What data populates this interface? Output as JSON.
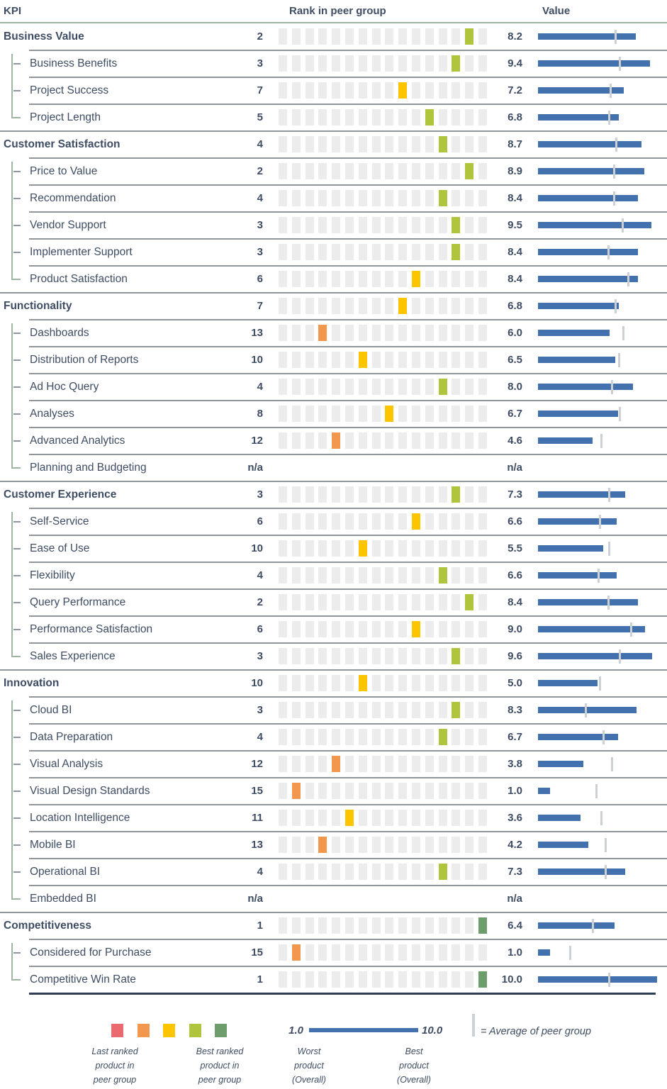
{
  "header": {
    "kpi": "KPI",
    "rank": "Rank in peer group",
    "value": "Value"
  },
  "colors": {
    "text": "#3e4d63",
    "bar_blue": "#4271ad",
    "average_tick": "#ccd1d6",
    "square_gray": "#ececec",
    "rule_green": "#9db5a2",
    "separator_gray": "#8f969c",
    "bottom_rule": "#2e3d50",
    "highlight": {
      "red": "#ea6a70",
      "orange": "#f2984e",
      "yellow": "#fdc500",
      "yellowgreen": "#b0c43c",
      "green": "#6d9d6b"
    }
  },
  "legend": {
    "swatches": [
      "red",
      "orange",
      "yellow",
      "yellowgreen",
      "green"
    ],
    "last_ranked": "Last ranked\nproduct in\npeer group",
    "best_ranked": "Best ranked\nproduct in\npeer group",
    "scale_min": "1.0",
    "scale_max": "10.0",
    "worst_product": "Worst\nproduct\n(Overall)",
    "best_product": "Best\nproduct\n(Overall)",
    "average": "= Average of peer group"
  },
  "chart_data": {
    "type": "table",
    "columns": [
      "KPI",
      "Rank in peer group",
      "Value"
    ],
    "scale": {
      "min": 1.0,
      "max": 10.0
    },
    "peer_group_size": 16,
    "rows": [
      {
        "label": "Business Value",
        "level": "parent",
        "rank": "2",
        "value": "8.2",
        "value_num": 8.2,
        "peer_avg": 6.5,
        "highlight": "yellowgreen"
      },
      {
        "label": "Business Benefits",
        "level": "child",
        "rank": "3",
        "value": "9.4",
        "value_num": 9.4,
        "peer_avg": 6.9,
        "highlight": "yellowgreen"
      },
      {
        "label": "Project Success",
        "level": "child",
        "rank": "7",
        "value": "7.2",
        "value_num": 7.2,
        "peer_avg": 6.1,
        "highlight": "yellow"
      },
      {
        "label": "Project Length",
        "level": "child",
        "rank": "5",
        "value": "6.8",
        "value_num": 6.8,
        "peer_avg": 6.0,
        "highlight": "yellowgreen"
      },
      {
        "label": "Customer Satisfaction",
        "level": "parent",
        "rank": "4",
        "value": "8.7",
        "value_num": 8.7,
        "peer_avg": 6.6,
        "highlight": "yellowgreen"
      },
      {
        "label": "Price to Value",
        "level": "child",
        "rank": "2",
        "value": "8.9",
        "value_num": 8.9,
        "peer_avg": 6.4,
        "highlight": "yellowgreen"
      },
      {
        "label": "Recommendation",
        "level": "child",
        "rank": "4",
        "value": "8.4",
        "value_num": 8.4,
        "peer_avg": 6.4,
        "highlight": "yellowgreen"
      },
      {
        "label": "Vendor Support",
        "level": "child",
        "rank": "3",
        "value": "9.5",
        "value_num": 9.5,
        "peer_avg": 7.1,
        "highlight": "yellowgreen"
      },
      {
        "label": "Implementer Support",
        "level": "child",
        "rank": "3",
        "value": "8.4",
        "value_num": 8.4,
        "peer_avg": 5.9,
        "highlight": "yellowgreen"
      },
      {
        "label": "Product Satisfaction",
        "level": "child",
        "rank": "6",
        "value": "8.4",
        "value_num": 8.4,
        "peer_avg": 7.6,
        "highlight": "yellow"
      },
      {
        "label": "Functionality",
        "level": "parent",
        "rank": "7",
        "value": "6.8",
        "value_num": 6.8,
        "peer_avg": 6.5,
        "highlight": "yellow"
      },
      {
        "label": "Dashboards",
        "level": "child",
        "rank": "13",
        "value": "6.0",
        "value_num": 6.0,
        "peer_avg": 7.2,
        "highlight": "orange"
      },
      {
        "label": "Distribution of Reports",
        "level": "child",
        "rank": "10",
        "value": "6.5",
        "value_num": 6.5,
        "peer_avg": 6.8,
        "highlight": "yellow"
      },
      {
        "label": "Ad Hoc Query",
        "level": "child",
        "rank": "4",
        "value": "8.0",
        "value_num": 8.0,
        "peer_avg": 6.2,
        "highlight": "yellowgreen"
      },
      {
        "label": "Analyses",
        "level": "child",
        "rank": "8",
        "value": "6.7",
        "value_num": 6.7,
        "peer_avg": 6.9,
        "highlight": "yellow"
      },
      {
        "label": "Advanced Analytics",
        "level": "child",
        "rank": "12",
        "value": "4.6",
        "value_num": 4.6,
        "peer_avg": 5.3,
        "highlight": "orange"
      },
      {
        "label": "Planning and Budgeting",
        "level": "child",
        "rank": "n/a",
        "value": "n/a",
        "value_num": null,
        "peer_avg": null,
        "highlight": null
      },
      {
        "label": "Customer Experience",
        "level": "parent",
        "rank": "3",
        "value": "7.3",
        "value_num": 7.3,
        "peer_avg": 6.0,
        "highlight": "yellowgreen"
      },
      {
        "label": "Self-Service",
        "level": "child",
        "rank": "6",
        "value": "6.6",
        "value_num": 6.6,
        "peer_avg": 5.2,
        "highlight": "yellow"
      },
      {
        "label": "Ease of Use",
        "level": "child",
        "rank": "10",
        "value": "5.5",
        "value_num": 5.5,
        "peer_avg": 6.0,
        "highlight": "yellow"
      },
      {
        "label": "Flexibility",
        "level": "child",
        "rank": "4",
        "value": "6.6",
        "value_num": 6.6,
        "peer_avg": 5.1,
        "highlight": "yellowgreen"
      },
      {
        "label": "Query Performance",
        "level": "child",
        "rank": "2",
        "value": "8.4",
        "value_num": 8.4,
        "peer_avg": 5.9,
        "highlight": "yellowgreen"
      },
      {
        "label": "Performance Satisfaction",
        "level": "child",
        "rank": "6",
        "value": "9.0",
        "value_num": 9.0,
        "peer_avg": 7.8,
        "highlight": "yellow"
      },
      {
        "label": "Sales Experience",
        "level": "child",
        "rank": "3",
        "value": "9.6",
        "value_num": 9.6,
        "peer_avg": 6.9,
        "highlight": "yellowgreen"
      },
      {
        "label": "Innovation",
        "level": "parent",
        "rank": "10",
        "value": "5.0",
        "value_num": 5.0,
        "peer_avg": 5.2,
        "highlight": "yellow"
      },
      {
        "label": "Cloud BI",
        "level": "child",
        "rank": "3",
        "value": "8.3",
        "value_num": 8.3,
        "peer_avg": 4.0,
        "highlight": "yellowgreen"
      },
      {
        "label": "Data Preparation",
        "level": "child",
        "rank": "4",
        "value": "6.7",
        "value_num": 6.7,
        "peer_avg": 5.5,
        "highlight": "yellowgreen"
      },
      {
        "label": "Visual Analysis",
        "level": "child",
        "rank": "12",
        "value": "3.8",
        "value_num": 3.8,
        "peer_avg": 6.2,
        "highlight": "orange"
      },
      {
        "label": "Visual Design Standards",
        "level": "child",
        "rank": "15",
        "value": "1.0",
        "value_num": 1.0,
        "peer_avg": 4.9,
        "highlight": "orange"
      },
      {
        "label": "Location Intelligence",
        "level": "child",
        "rank": "11",
        "value": "3.6",
        "value_num": 3.6,
        "peer_avg": 5.3,
        "highlight": "yellow"
      },
      {
        "label": "Mobile BI",
        "level": "child",
        "rank": "13",
        "value": "4.2",
        "value_num": 4.2,
        "peer_avg": 5.7,
        "highlight": "orange"
      },
      {
        "label": "Operational BI",
        "level": "child",
        "rank": "4",
        "value": "7.3",
        "value_num": 7.3,
        "peer_avg": 5.7,
        "highlight": "yellowgreen"
      },
      {
        "label": "Embedded BI",
        "level": "child",
        "rank": "n/a",
        "value": "n/a",
        "value_num": null,
        "peer_avg": null,
        "highlight": null
      },
      {
        "label": "Competitiveness",
        "level": "parent",
        "rank": "1",
        "value": "6.4",
        "value_num": 6.4,
        "peer_avg": 4.6,
        "highlight": "green"
      },
      {
        "label": "Considered for Purchase",
        "level": "child",
        "rank": "15",
        "value": "1.0",
        "value_num": 1.0,
        "peer_avg": 2.7,
        "highlight": "orange"
      },
      {
        "label": "Competitive Win Rate",
        "level": "child",
        "rank": "1",
        "value": "10.0",
        "value_num": 10.0,
        "peer_avg": 6.0,
        "highlight": "green"
      }
    ]
  }
}
